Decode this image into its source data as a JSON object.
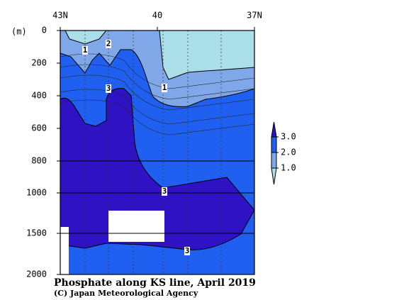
{
  "chart_data": {
    "type": "contour",
    "title": "Phosphate along KS line, April 2019",
    "credit": "(C) Japan Meteorological Agency",
    "y_unit": "(m)",
    "xlim": [
      43,
      37
    ],
    "xticks": [
      {
        "value": 43,
        "label": "43N"
      },
      40,
      {
        "value": 37,
        "label": "37N"
      }
    ],
    "ylim": [
      0,
      2000
    ],
    "yticks": [
      0,
      200,
      400,
      600,
      800,
      1000,
      1500,
      2000
    ],
    "colorbar": {
      "levels": [
        {
          "value": 1,
          "label": "1.0"
        },
        {
          "value": 2,
          "label": "2.0"
        },
        {
          "value": 3,
          "label": "3.0"
        }
      ],
      "colors": [
        "#aadfea",
        "#80a8e8",
        "#1f60f0",
        "#2e12c4"
      ]
    },
    "contour_labels": [
      1,
      2,
      3,
      1,
      3,
      3
    ]
  }
}
